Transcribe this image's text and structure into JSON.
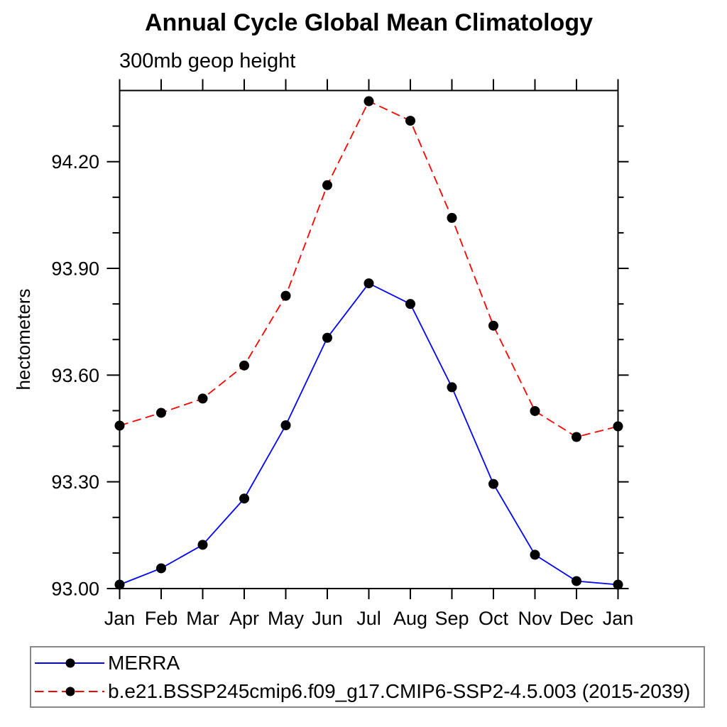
{
  "title": "Annual Cycle Global Mean Climatology",
  "subtitle": "300mb geop height",
  "chart_data": {
    "type": "line",
    "categories": [
      "Jan",
      "Feb",
      "Mar",
      "Apr",
      "May",
      "Jun",
      "Jul",
      "Aug",
      "Sep",
      "Oct",
      "Nov",
      "Dec",
      "Jan"
    ],
    "ylabel": "hectometers",
    "ylim": [
      93.0,
      94.4
    ],
    "ytick_values": [
      93.0,
      93.3,
      93.6,
      93.9,
      94.2
    ],
    "ytick_labels": [
      "93.00",
      "93.30",
      "93.60",
      "93.90",
      "94.20"
    ],
    "minor_tick_step": 0.1,
    "grid": false,
    "legend_position": "bottom",
    "frame_color": "#000000",
    "marker_color": "#000000",
    "series": [
      {
        "name": "MERRA",
        "color": "#0000ff",
        "dash": "",
        "values": [
          93.011,
          93.057,
          93.123,
          93.253,
          93.459,
          93.705,
          93.858,
          93.8,
          93.566,
          93.294,
          93.095,
          93.021,
          93.011
        ]
      },
      {
        "name": "b.e21.BSSP245cmip6.f09_g17.CMIP6-SSP2-4.5.003 (2015-2039)",
        "color": "#ff0000",
        "dash": "12.5,6.5",
        "values": [
          93.458,
          93.494,
          93.534,
          93.627,
          93.823,
          94.134,
          94.37,
          94.315,
          94.042,
          93.739,
          93.499,
          93.426,
          93.456
        ]
      }
    ]
  }
}
